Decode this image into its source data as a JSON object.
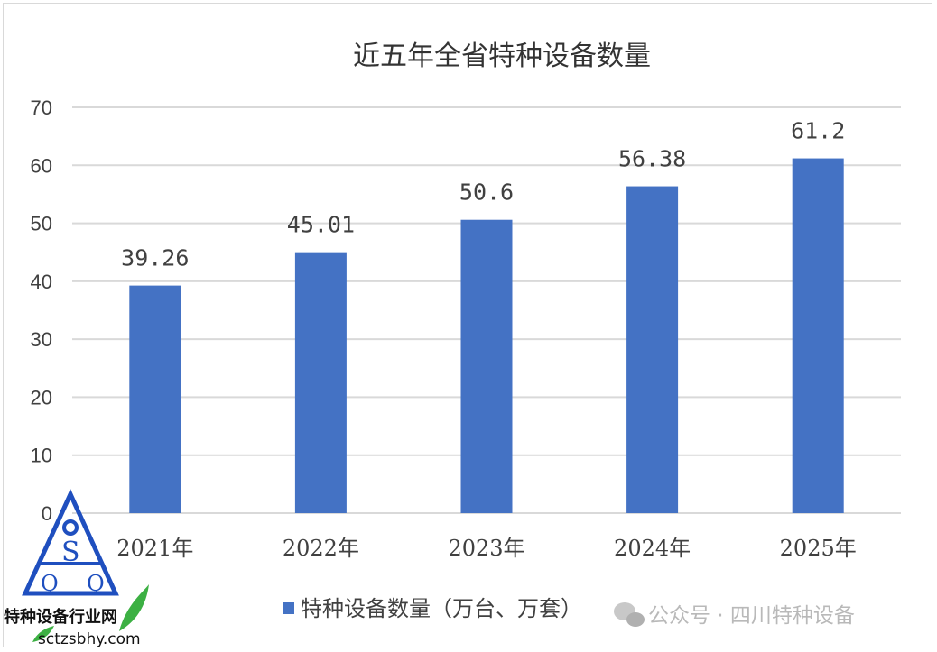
{
  "chart_data": {
    "type": "bar",
    "title": "近五年全省特种设备数量",
    "categories": [
      "2021年",
      "2022年",
      "2023年",
      "2024年",
      "2025年"
    ],
    "series": [
      {
        "name": "特种设备数量（万台、万套）",
        "values": [
          39.26,
          45.01,
          50.6,
          56.38,
          61.2
        ],
        "color": "#4472c4"
      }
    ],
    "data_labels": [
      "39.26",
      "45.01",
      "50.6",
      "56.38",
      "61.2"
    ],
    "ylim": [
      0,
      70
    ],
    "yticks": [
      "0",
      "10",
      "20",
      "30",
      "40",
      "50",
      "60",
      "70"
    ],
    "grid": true,
    "legend": "bottom"
  },
  "watermark": {
    "text": "公众号 · 四川特种设备",
    "icon": "wechat-icon"
  },
  "logo": {
    "name": "特种设备行业网",
    "url": "sctzsbhy.com",
    "letters": [
      "Q",
      "S",
      "Q"
    ]
  }
}
